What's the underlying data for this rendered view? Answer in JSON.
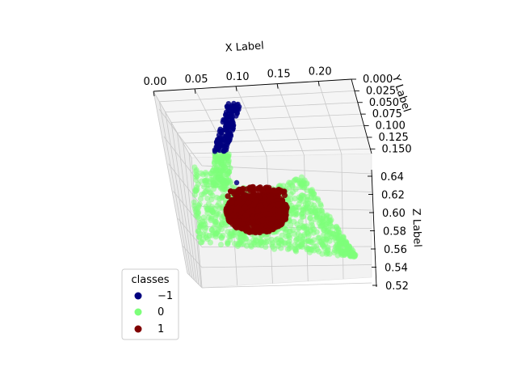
{
  "chart_data": {
    "type": "scatter",
    "projection": "3d",
    "title": "",
    "xlabel": "X Label",
    "ylabel": "Y Label",
    "zlabel": "Z Label",
    "x_ticks": [
      "0.00",
      "0.05",
      "0.10",
      "0.15",
      "0.20"
    ],
    "y_ticks": [
      "0.000",
      "0.025",
      "0.050",
      "0.075",
      "0.100",
      "0.125",
      "0.150"
    ],
    "z_ticks": [
      "0.52",
      "0.54",
      "0.56",
      "0.58",
      "0.60",
      "0.62",
      "0.64"
    ],
    "xlim": [
      0.0,
      0.24
    ],
    "ylim": [
      0.0,
      0.16
    ],
    "zlim": [
      0.52,
      0.65
    ],
    "grid": true,
    "legend": {
      "title": "classes",
      "placement": "lower-left",
      "entries": [
        {
          "label": "−1",
          "color": "#00007f"
        },
        {
          "label": "0",
          "color": "#7dff7a"
        },
        {
          "label": "1",
          "color": "#7f0000"
        }
      ]
    },
    "series": [
      {
        "name": "−1",
        "color": "#00007f"
      },
      {
        "name": "0",
        "color": "#7dff7a"
      },
      {
        "name": "1",
        "color": "#7f0000"
      }
    ]
  }
}
